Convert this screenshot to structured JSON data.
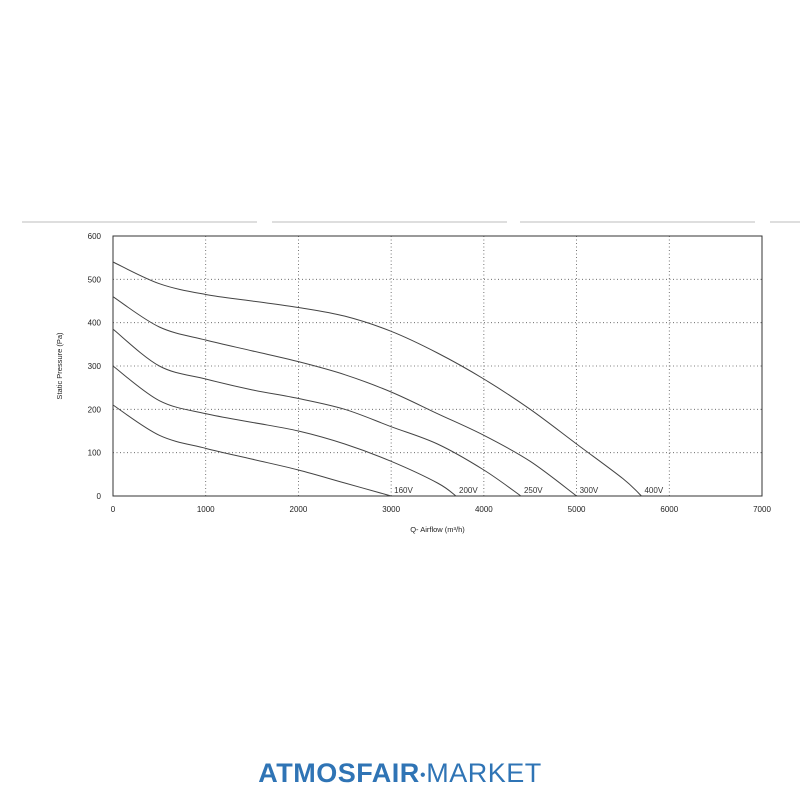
{
  "chart_data": {
    "type": "line",
    "xlabel": "Q- Airflow (m³/h)",
    "ylabel": "Static Pressure (Pa)",
    "xlim": [
      0,
      7000
    ],
    "ylim": [
      0,
      600
    ],
    "x_ticks": [
      "0",
      "1000",
      "2000",
      "3000",
      "4000",
      "5000",
      "6000",
      "7000"
    ],
    "y_ticks": [
      "0",
      "100",
      "200",
      "300",
      "400",
      "500",
      "600"
    ],
    "grid": true,
    "series": [
      {
        "name": "160V",
        "x": [
          0,
          500,
          1000,
          1500,
          2000,
          2500,
          3000
        ],
        "y": [
          210,
          140,
          110,
          85,
          60,
          30,
          0
        ]
      },
      {
        "name": "200V",
        "x": [
          0,
          500,
          1000,
          1500,
          2000,
          2500,
          3000,
          3500,
          3700
        ],
        "y": [
          300,
          220,
          190,
          170,
          150,
          120,
          80,
          30,
          0
        ]
      },
      {
        "name": "250V",
        "x": [
          0,
          500,
          1000,
          1500,
          2000,
          2500,
          3000,
          3500,
          4000,
          4400
        ],
        "y": [
          385,
          300,
          270,
          245,
          225,
          200,
          160,
          120,
          60,
          0
        ]
      },
      {
        "name": "300V",
        "x": [
          0,
          500,
          1000,
          1500,
          2000,
          2500,
          3000,
          3500,
          4000,
          4500,
          5000
        ],
        "y": [
          460,
          390,
          360,
          335,
          310,
          280,
          240,
          190,
          140,
          80,
          0
        ]
      },
      {
        "name": "400V",
        "x": [
          0,
          500,
          1000,
          1500,
          2000,
          2500,
          3000,
          3500,
          4000,
          4500,
          5000,
          5500,
          5700
        ],
        "y": [
          540,
          490,
          465,
          450,
          435,
          415,
          380,
          330,
          270,
          200,
          120,
          40,
          0
        ]
      }
    ]
  },
  "brand": {
    "strong": "ATMOSFAIR",
    "dot": "●",
    "light": "MARKET"
  }
}
